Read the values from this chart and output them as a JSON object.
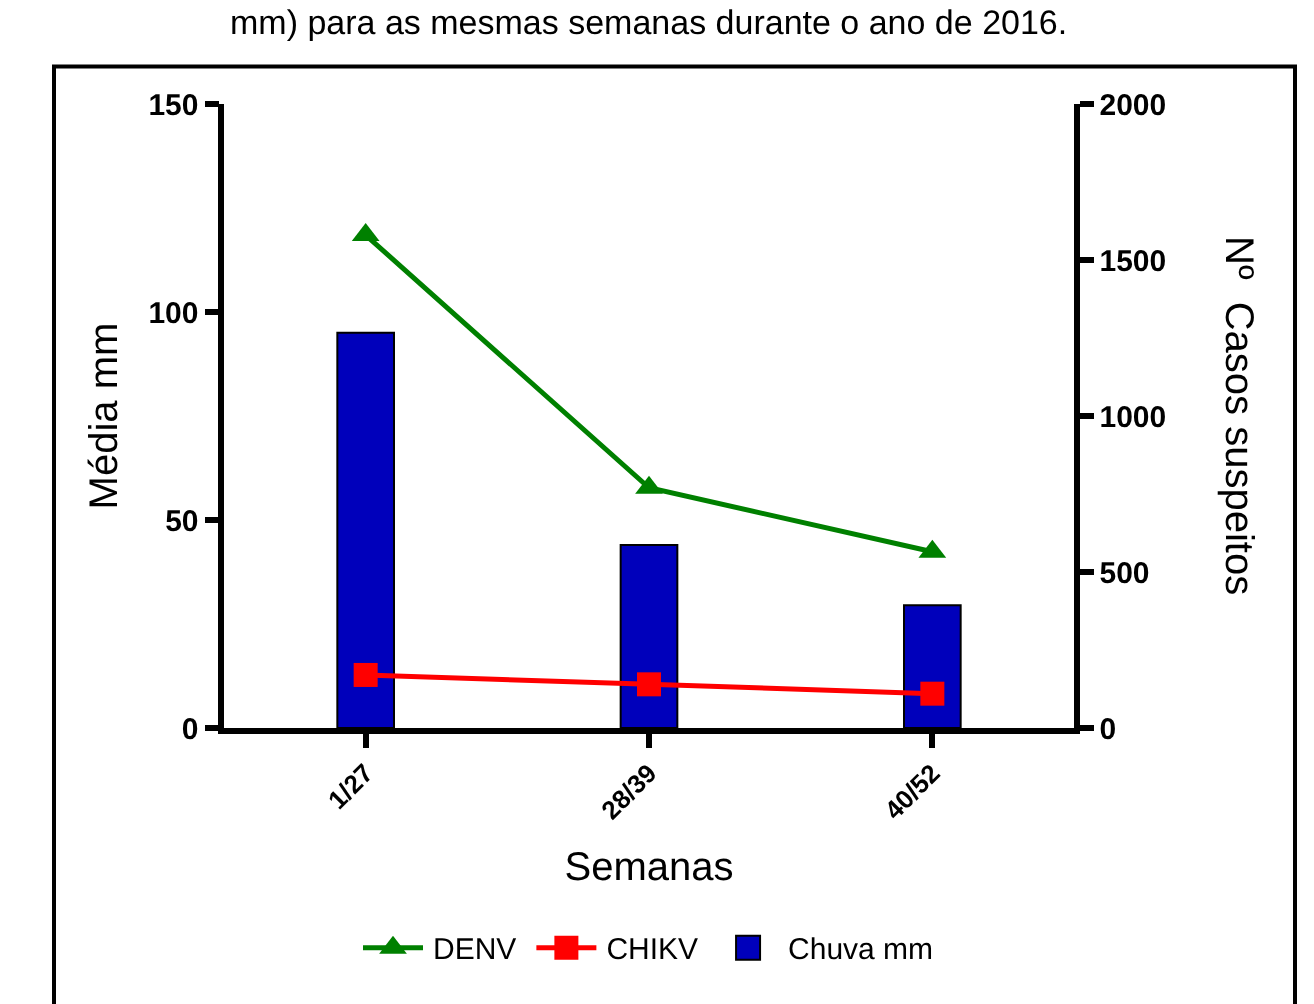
{
  "chart_data": {
    "type": "bar",
    "annotations": [
      "mm) para as mesmas semanas durante o ano de 2016."
    ],
    "xlabel": "Semanas",
    "ylabel": "Média mm",
    "y2label": "Nº  Casos suspeitos",
    "categories": [
      "1/27",
      "28/39",
      "40/52"
    ],
    "series": [
      {
        "name": "DENV",
        "type": "line",
        "axis": "y2",
        "color": "#008000",
        "marker": "triangle",
        "values": [
          1580,
          770,
          565
        ]
      },
      {
        "name": "CHIKV",
        "type": "line",
        "axis": "y2",
        "color": "#ff0000",
        "marker": "square",
        "values": [
          170,
          140,
          110
        ]
      },
      {
        "name": "Chuva mm",
        "color": "#0000bb",
        "values": [
          95,
          44,
          29.5
        ]
      }
    ],
    "ylim": [
      0,
      150
    ],
    "yticks": [
      0,
      50,
      100,
      150
    ],
    "y2lim": [
      0,
      2000
    ],
    "y2ticks": [
      0,
      500,
      1000,
      1500,
      2000
    ],
    "legend": "bottom"
  }
}
